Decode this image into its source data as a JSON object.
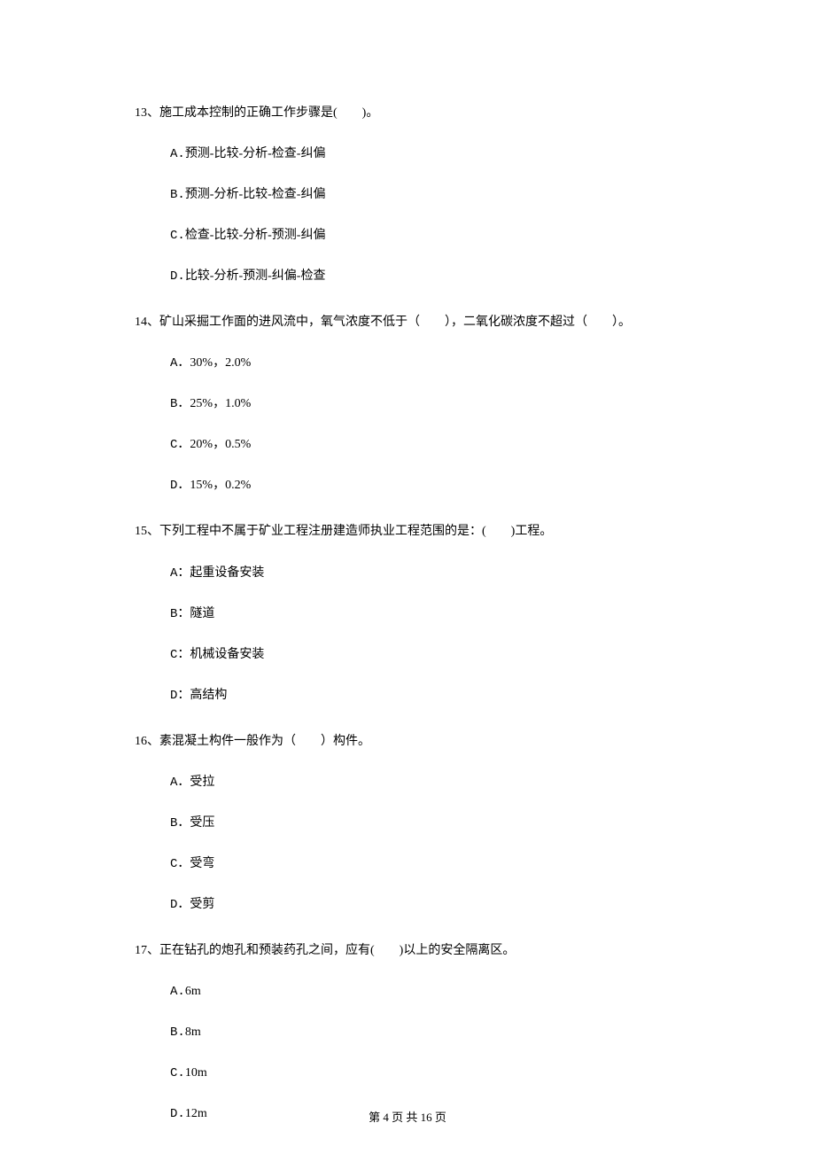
{
  "questions": [
    {
      "number": "13",
      "stem": "13、施工成本控制的正确工作步骤是(　　)。",
      "options": [
        {
          "label": "A.",
          "text": "预测-比较-分析-检查-纠偏"
        },
        {
          "label": "B.",
          "text": "预测-分析-比较-检查-纠偏"
        },
        {
          "label": "C.",
          "text": "检查-比较-分析-预测-纠偏"
        },
        {
          "label": "D.",
          "text": "比较-分析-预测-纠偏-检查"
        }
      ]
    },
    {
      "number": "14",
      "stem": "14、矿山采掘工作面的进风流中，氧气浓度不低于（　　），二氧化碳浓度不超过（　　）。",
      "options": [
        {
          "label": "A．",
          "text": "30%，2.0%"
        },
        {
          "label": "B．",
          "text": "25%，1.0%"
        },
        {
          "label": "C．",
          "text": "20%，0.5%"
        },
        {
          "label": "D．",
          "text": "15%，0.2%"
        }
      ]
    },
    {
      "number": "15",
      "stem": "15、下列工程中不属于矿业工程注册建造师执业工程范围的是：(　　)工程。",
      "options": [
        {
          "label": "A：",
          "text": "起重设备安装"
        },
        {
          "label": "B：",
          "text": "隧道"
        },
        {
          "label": "C：",
          "text": "机械设备安装"
        },
        {
          "label": "D：",
          "text": "高结构"
        }
      ]
    },
    {
      "number": "16",
      "stem": "16、素混凝土构件一般作为（　　）构件。",
      "options": [
        {
          "label": "A．",
          "text": "受拉"
        },
        {
          "label": "B．",
          "text": "受压"
        },
        {
          "label": "C．",
          "text": "受弯"
        },
        {
          "label": "D．",
          "text": "受剪"
        }
      ]
    },
    {
      "number": "17",
      "stem": "17、正在钻孔的炮孔和预装药孔之间，应有(　　)以上的安全隔离区。",
      "options": [
        {
          "label": "A.",
          "text": "6m"
        },
        {
          "label": "B.",
          "text": "8m"
        },
        {
          "label": "C.",
          "text": "10m"
        },
        {
          "label": "D.",
          "text": "12m"
        }
      ]
    }
  ],
  "footer": "第 4 页 共 16 页"
}
